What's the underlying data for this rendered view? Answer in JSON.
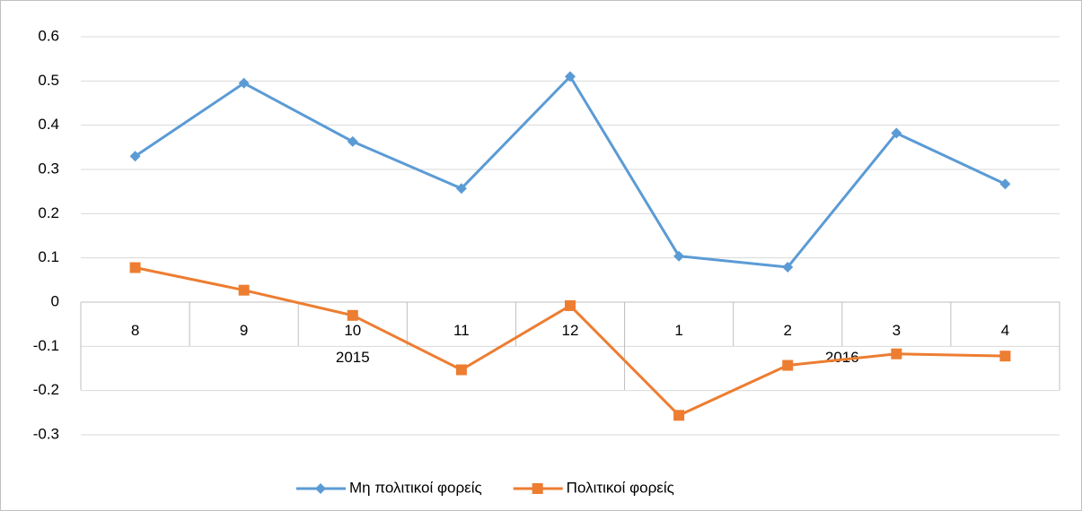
{
  "chart_data": {
    "type": "line",
    "categories": [
      "8",
      "9",
      "10",
      "11",
      "12",
      "1",
      "2",
      "3",
      "4"
    ],
    "category_groups": [
      {
        "label": "2015",
        "count": 5
      },
      {
        "label": "2016",
        "count": 4
      }
    ],
    "series": [
      {
        "name": "Μη πολιτικοί φορείς",
        "color": "#5b9bd5",
        "marker": "diamond",
        "values": [
          0.33,
          0.495,
          0.363,
          0.257,
          0.51,
          0.104,
          0.079,
          0.382,
          0.267
        ]
      },
      {
        "name": "Πολιτικοί φορείς",
        "color": "#ed7d31",
        "marker": "square",
        "values": [
          0.078,
          0.027,
          -0.03,
          -0.153,
          -0.008,
          -0.256,
          -0.143,
          -0.117,
          -0.122
        ]
      }
    ],
    "ylim": [
      -0.3,
      0.6
    ],
    "yticks": [
      -0.3,
      -0.2,
      -0.1,
      0,
      0.1,
      0.2,
      0.3,
      0.4,
      0.5,
      0.6
    ],
    "grid": true,
    "legend": "bottom"
  }
}
